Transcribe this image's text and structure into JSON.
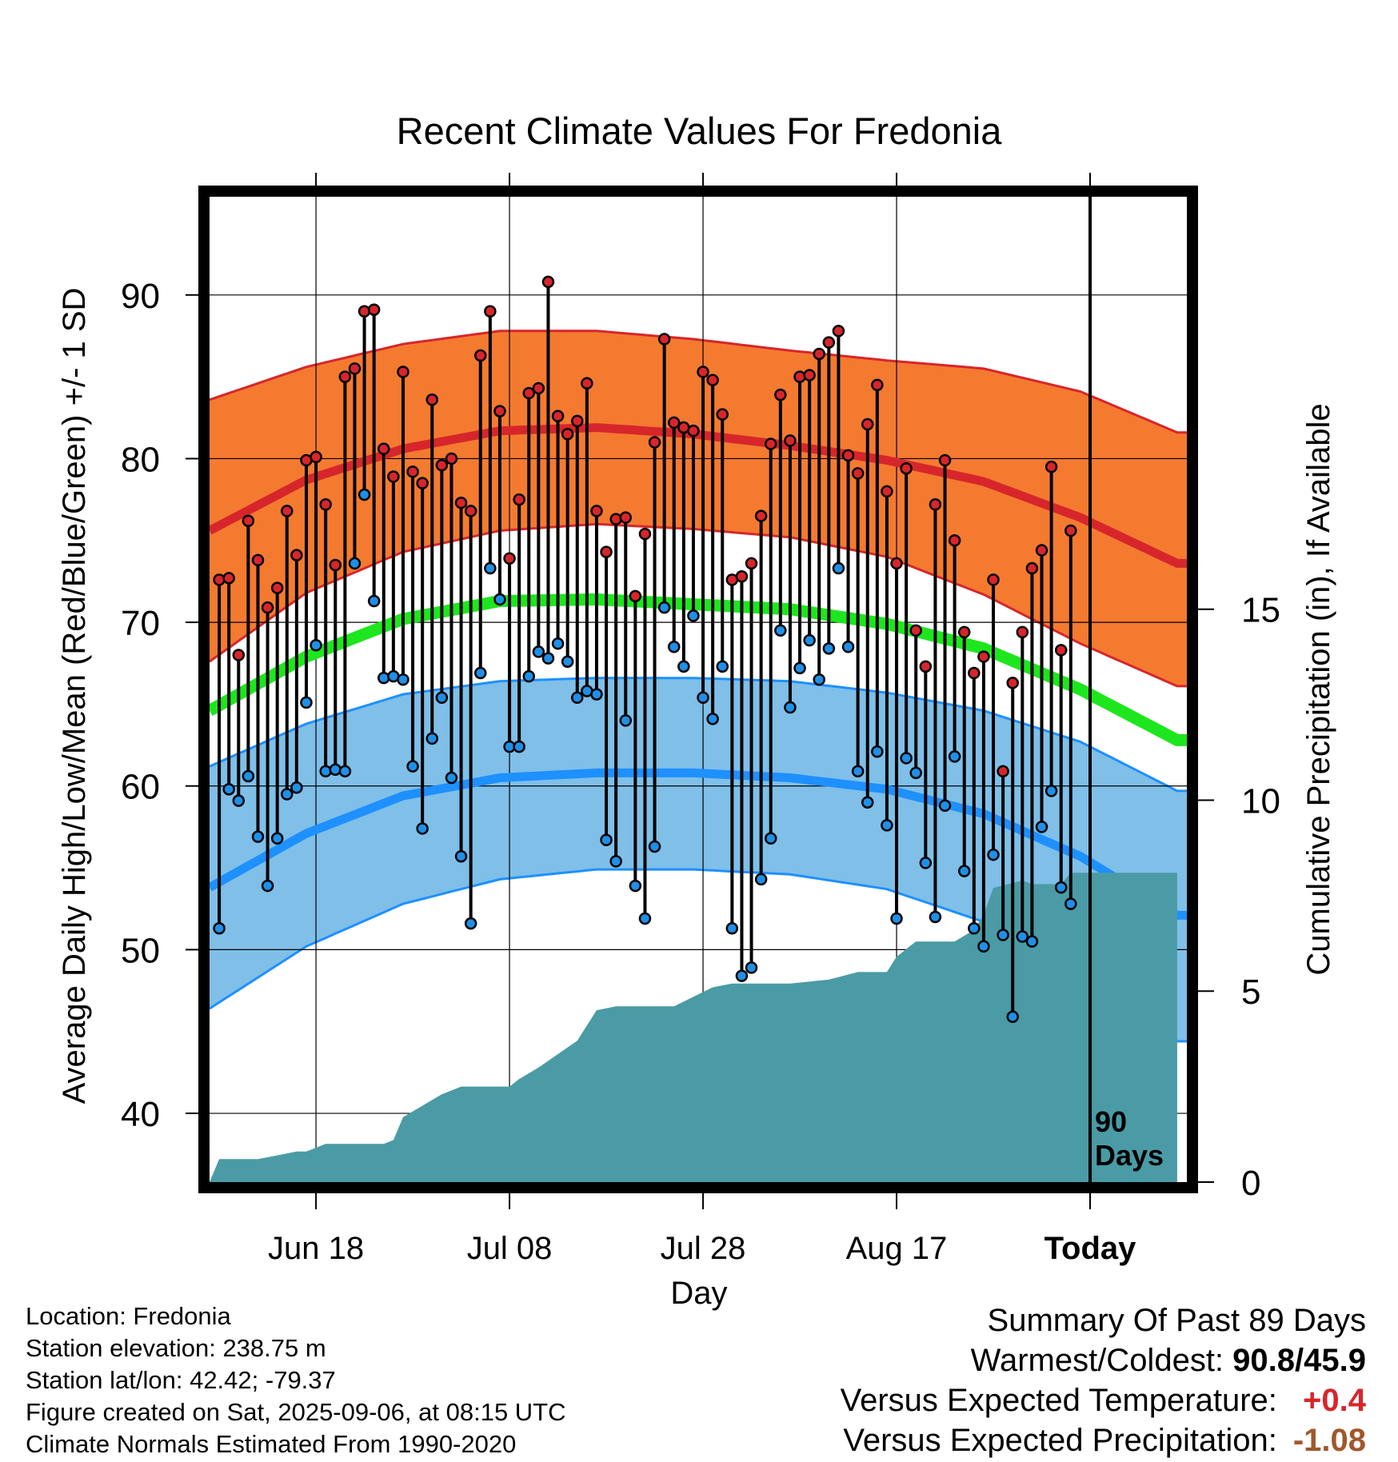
{
  "chart_data": {
    "type": "line",
    "title": "Recent Climate Values For Fredonia",
    "xlabel": "Day",
    "ylabel": "Average Daily High/Low/Mean (Red/Blue/Green) +/- 1 SD",
    "y2label": "Cumulative Precipitation (in), If Available",
    "x_ticks": [
      "Jun 18",
      "Jul 08",
      "Jul 28",
      "Aug 17",
      "Today"
    ],
    "x_tick_day": [
      11,
      31,
      51,
      71,
      91
    ],
    "xlim": [
      0,
      101
    ],
    "ylim": [
      35.8,
      96
    ],
    "y_ticks": [
      40,
      50,
      60,
      70,
      80,
      90
    ],
    "y2lim": [
      0,
      25.8
    ],
    "y2_ticks": [
      0,
      5,
      10,
      15
    ],
    "today_marker": "90\nDays",
    "normals": {
      "days": [
        0,
        10,
        20,
        30,
        40,
        50,
        60,
        70,
        80,
        90,
        100
      ],
      "high_mean": [
        75.6,
        78.7,
        80.6,
        81.7,
        81.9,
        81.5,
        80.8,
        79.9,
        78.6,
        76.4,
        73.6
      ],
      "high_upper": [
        83.6,
        85.6,
        87.0,
        87.8,
        87.8,
        87.3,
        86.6,
        86.0,
        85.5,
        84.1,
        81.6
      ],
      "high_lower": [
        67.6,
        71.8,
        74.3,
        75.6,
        76.0,
        75.7,
        75.2,
        74.0,
        71.7,
        68.7,
        66.1
      ],
      "mean": [
        64.6,
        67.9,
        70.2,
        71.3,
        71.4,
        71.1,
        70.8,
        69.9,
        68.4,
        65.9,
        62.8
      ],
      "low_mean": [
        53.8,
        57.1,
        59.4,
        60.5,
        60.8,
        60.8,
        60.5,
        59.8,
        58.3,
        55.7,
        52.1
      ],
      "low_upper": [
        61.2,
        63.8,
        65.6,
        66.4,
        66.6,
        66.6,
        66.4,
        65.7,
        64.6,
        62.7,
        59.7
      ],
      "low_lower": [
        46.4,
        50.2,
        52.8,
        54.3,
        54.9,
        54.9,
        54.6,
        53.7,
        51.7,
        48.7,
        44.4
      ]
    },
    "series": [
      {
        "name": "High",
        "color": "#d7262b",
        "values": [
          72.6,
          72.7,
          68.0,
          76.2,
          73.8,
          70.9,
          72.1,
          76.8,
          74.1,
          79.9,
          80.1,
          77.2,
          73.5,
          85.0,
          85.5,
          89.0,
          89.1,
          80.6,
          78.9,
          85.3,
          79.2,
          78.5,
          83.6,
          79.6,
          80.0,
          77.3,
          76.8,
          86.3,
          89.0,
          82.9,
          73.9,
          77.5,
          84.0,
          84.3,
          90.8,
          82.6,
          81.5,
          82.3,
          84.6,
          76.8,
          74.3,
          76.3,
          76.4,
          71.6,
          75.4,
          81.0,
          87.3,
          82.2,
          81.9,
          81.7,
          85.3,
          84.8,
          82.7,
          72.6,
          72.8,
          73.6,
          76.5,
          80.9,
          83.9,
          81.1,
          85.0,
          85.1,
          86.4,
          87.1,
          87.8,
          80.2,
          79.1,
          82.1,
          84.5,
          78.0,
          73.6,
          79.4,
          69.5,
          67.3,
          77.2,
          79.9,
          75.0,
          69.4,
          66.9,
          67.9,
          72.6,
          60.9,
          66.3,
          69.4,
          73.3,
          74.4,
          79.5,
          68.3,
          75.6
        ]
      },
      {
        "name": "Low",
        "color": "#1e90e8",
        "values": [
          51.3,
          59.8,
          59.1,
          60.6,
          56.9,
          53.9,
          56.8,
          59.5,
          59.9,
          65.1,
          68.6,
          60.9,
          61.0,
          60.9,
          73.6,
          77.8,
          71.3,
          66.6,
          66.7,
          66.5,
          61.2,
          57.4,
          62.9,
          65.4,
          60.5,
          55.7,
          51.6,
          66.9,
          73.3,
          71.4,
          62.4,
          62.4,
          66.7,
          68.2,
          67.8,
          68.7,
          67.6,
          65.4,
          65.8,
          65.6,
          56.7,
          55.4,
          64.0,
          53.9,
          51.9,
          56.3,
          70.9,
          68.5,
          67.3,
          70.4,
          65.4,
          64.1,
          67.3,
          51.3,
          48.4,
          48.9,
          54.3,
          56.8,
          69.5,
          64.8,
          67.2,
          68.9,
          66.5,
          68.4,
          73.3,
          68.5,
          60.9,
          59.0,
          62.1,
          57.6,
          51.9,
          61.7,
          60.8,
          55.3,
          52.0,
          58.8,
          61.8,
          54.8,
          51.3,
          50.2,
          55.8,
          50.9,
          45.9,
          50.8,
          50.5,
          57.5,
          59.7,
          53.8,
          52.8
        ]
      },
      {
        "name": "Cumulative Precipitation",
        "color": "#4a9ba5",
        "days": [
          0,
          1,
          5,
          7,
          9,
          10,
          12,
          18,
          19,
          20,
          22,
          24,
          26,
          28,
          31,
          32,
          34,
          38,
          40,
          42,
          48,
          52,
          54,
          60,
          64,
          67,
          70,
          71,
          73,
          77,
          79,
          80,
          81,
          84,
          85,
          88,
          89,
          90,
          100
        ],
        "values": [
          0.0,
          0.6,
          0.6,
          0.7,
          0.8,
          0.8,
          1.0,
          1.0,
          1.1,
          1.7,
          2.0,
          2.3,
          2.5,
          2.5,
          2.5,
          2.7,
          3.0,
          3.7,
          4.5,
          4.6,
          4.6,
          5.1,
          5.2,
          5.2,
          5.3,
          5.5,
          5.5,
          5.9,
          6.3,
          6.3,
          6.6,
          7.0,
          7.7,
          7.9,
          7.8,
          7.8,
          8.1,
          8.1,
          8.1
        ]
      }
    ]
  },
  "info": {
    "location": "Location: Fredonia",
    "elevation": "Station elevation: 238.75 m",
    "latlon": "Station lat/lon: 42.42; -79.37",
    "created": "Figure created on Sat, 2025-09-06, at 08:15 UTC",
    "normals": "Climate Normals Estimated From 1990-2020"
  },
  "summary": {
    "title": "Summary Of Past 89 Days",
    "warm_cold_label": "Warmest/Coldest:",
    "warm_cold_value": "90.8/45.9",
    "temp_label": "Versus Expected Temperature:",
    "temp_value": "+0.4",
    "temp_color": "#d7262b",
    "precip_label": "Versus Expected Precipitation:",
    "precip_value": "-1.08",
    "precip_color": "#a0582b"
  }
}
